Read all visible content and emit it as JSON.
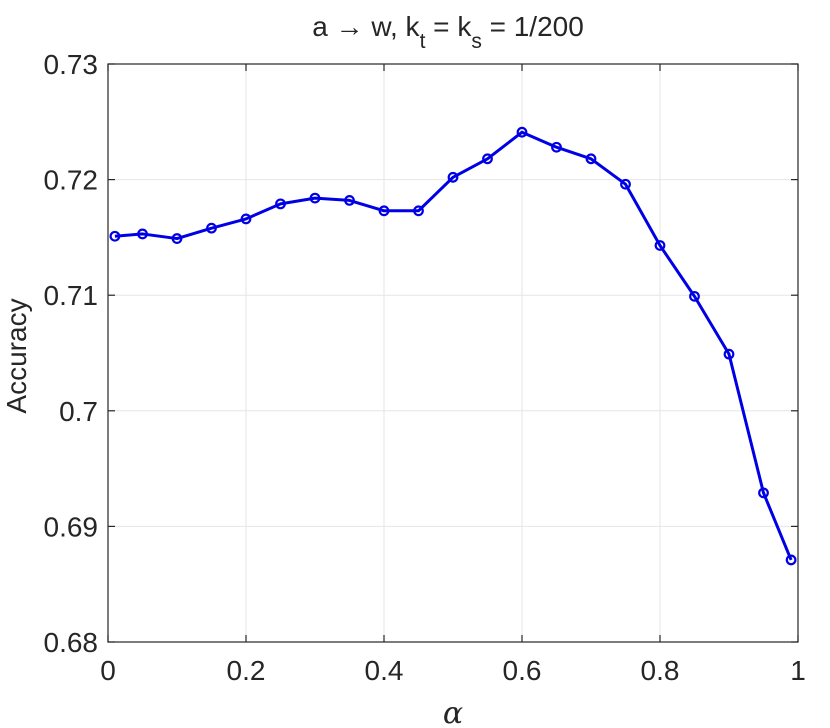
{
  "chart_data": {
    "type": "line",
    "title": {
      "prefix": "a → w, k",
      "sub1": "t",
      "mid": " = k",
      "sub2": "s",
      "suffix": " = 1/200"
    },
    "xlabel": "α",
    "ylabel": "Accuracy",
    "xlim": [
      0,
      1
    ],
    "ylim": [
      0.68,
      0.73
    ],
    "xticks": [
      0,
      0.2,
      0.4,
      0.6,
      0.8,
      1
    ],
    "xtick_labels": [
      "0",
      "0.2",
      "0.4",
      "0.6",
      "0.8",
      "1"
    ],
    "yticks": [
      0.68,
      0.69,
      0.7,
      0.71,
      0.72,
      0.73
    ],
    "ytick_labels": [
      "0.68",
      "0.69",
      "0.7",
      "0.71",
      "0.72",
      "0.73"
    ],
    "grid": true,
    "series": [
      {
        "color": "#0000e6",
        "marker": "circle",
        "x": [
          0.01,
          0.05,
          0.1,
          0.15,
          0.2,
          0.25,
          0.3,
          0.35,
          0.4,
          0.45,
          0.5,
          0.55,
          0.6,
          0.65,
          0.7,
          0.75,
          0.8,
          0.85,
          0.9,
          0.95,
          0.99
        ],
        "y": [
          0.7151,
          0.7153,
          0.7149,
          0.7158,
          0.7166,
          0.7179,
          0.7184,
          0.7182,
          0.7173,
          0.7173,
          0.7202,
          0.7218,
          0.7241,
          0.7228,
          0.7218,
          0.7196,
          0.7143,
          0.7099,
          0.7049,
          0.6929,
          0.6871
        ]
      }
    ]
  }
}
